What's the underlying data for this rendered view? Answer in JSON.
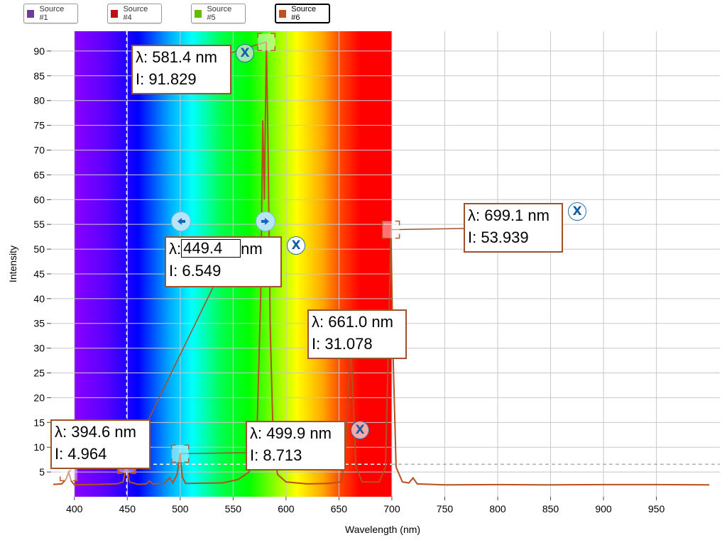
{
  "legend": [
    {
      "label": "Source #1",
      "color": "#6a3d9a",
      "active": false
    },
    {
      "label": "Source #4",
      "color": "#c0100e",
      "active": false
    },
    {
      "label": "Source #5",
      "color": "#66bb00",
      "active": false
    },
    {
      "label": "Source #6",
      "color": "#c0501c",
      "active": true
    }
  ],
  "annotations": {
    "a581": {
      "wl": "λ: 581.4 nm",
      "int": "I: 91.829"
    },
    "a699": {
      "wl": "λ: 699.1 nm",
      "int": "I: 53.939"
    },
    "a449": {
      "wl_prefix": "λ:",
      "wl_value": "449.4",
      "wl_unit": "nm",
      "int": "I: 6.549"
    },
    "a661": {
      "wl": "λ: 661.0 nm",
      "int": "I: 31.078"
    },
    "a394": {
      "wl": "λ: 394.6 nm",
      "int": "I: 4.964"
    },
    "a499": {
      "wl": "λ: 499.9 nm",
      "int": "I: 8.713"
    }
  },
  "close_glyph": "X",
  "colors": {
    "line": "#b5511c",
    "marker": "#c05a28",
    "annotation_border": "#a0522d",
    "grid": "#c8c8c8"
  },
  "chart_data": {
    "type": "line",
    "xlabel": "Wavelength (nm)",
    "ylabel": "Intensity",
    "xlim": [
      378,
      1010
    ],
    "ylim": [
      0,
      94
    ],
    "xticks": [
      400,
      450,
      500,
      550,
      600,
      650,
      700,
      750,
      800,
      850,
      900,
      950
    ],
    "yticks": [
      5,
      10,
      15,
      20,
      25,
      30,
      35,
      40,
      45,
      50,
      55,
      60,
      65,
      70,
      75,
      80,
      85,
      90
    ],
    "grid": true,
    "spectrum_band_nm": [
      400,
      700
    ],
    "cursor_wavelength": 449.4,
    "cursor_intensity": 6.549,
    "baseline": 2.5,
    "peaks": [
      {
        "x": 394.6,
        "y": 4.964
      },
      {
        "x": 449.4,
        "y": 6.549
      },
      {
        "x": 471.0,
        "y": 3.2
      },
      {
        "x": 490.0,
        "y": 3.8
      },
      {
        "x": 499.9,
        "y": 8.713
      },
      {
        "x": 578.0,
        "y": 76.0
      },
      {
        "x": 581.4,
        "y": 91.829
      },
      {
        "x": 661.0,
        "y": 31.078
      },
      {
        "x": 699.1,
        "y": 53.939
      },
      {
        "x": 720.0,
        "y": 3.8
      }
    ],
    "series": [
      {
        "name": "Source #6",
        "points": [
          [
            380,
            2.5
          ],
          [
            388,
            2.6
          ],
          [
            392,
            3.5
          ],
          [
            394.6,
            4.964
          ],
          [
            397,
            3.2
          ],
          [
            400,
            2.4
          ],
          [
            420,
            2.5
          ],
          [
            440,
            2.6
          ],
          [
            446,
            3.0
          ],
          [
            449.4,
            6.549
          ],
          [
            452,
            3.0
          ],
          [
            460,
            2.5
          ],
          [
            468,
            2.6
          ],
          [
            471,
            3.2
          ],
          [
            474,
            2.6
          ],
          [
            485,
            2.7
          ],
          [
            490,
            3.8
          ],
          [
            493,
            2.8
          ],
          [
            497,
            4.5
          ],
          [
            499.9,
            8.713
          ],
          [
            502,
            4.0
          ],
          [
            505,
            2.7
          ],
          [
            540,
            2.8
          ],
          [
            555,
            3.5
          ],
          [
            565,
            5.0
          ],
          [
            572,
            9.0
          ],
          [
            576,
            40.0
          ],
          [
            578,
            76.0
          ],
          [
            579.5,
            60.0
          ],
          [
            581.4,
            91.829
          ],
          [
            583,
            70.0
          ],
          [
            585,
            35.0
          ],
          [
            588,
            10.0
          ],
          [
            592,
            4.5
          ],
          [
            600,
            3.0
          ],
          [
            620,
            2.6
          ],
          [
            640,
            2.7
          ],
          [
            652,
            3.0
          ],
          [
            656,
            8.0
          ],
          [
            659,
            22.0
          ],
          [
            661,
            31.078
          ],
          [
            663,
            22.0
          ],
          [
            666,
            6.0
          ],
          [
            672,
            3.0
          ],
          [
            688,
            3.0
          ],
          [
            694,
            6.0
          ],
          [
            697,
            33.0
          ],
          [
            699.1,
            53.939
          ],
          [
            701,
            30.0
          ],
          [
            704,
            6.0
          ],
          [
            710,
            3.0
          ],
          [
            716,
            2.8
          ],
          [
            720,
            3.8
          ],
          [
            724,
            2.6
          ],
          [
            750,
            2.4
          ],
          [
            800,
            2.45
          ],
          [
            850,
            2.4
          ],
          [
            900,
            2.45
          ],
          [
            950,
            2.45
          ],
          [
            1000,
            2.4
          ]
        ]
      }
    ]
  }
}
